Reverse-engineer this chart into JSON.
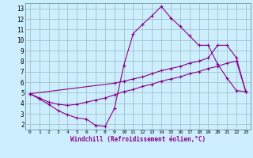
{
  "line1_x": [
    0,
    1,
    2,
    3,
    4,
    5,
    6,
    7,
    8,
    9,
    10,
    11,
    12,
    13,
    14,
    15,
    16,
    17,
    18,
    19,
    20,
    21,
    22,
    23
  ],
  "line1_y": [
    4.9,
    4.4,
    3.9,
    3.3,
    2.9,
    2.6,
    2.5,
    1.9,
    1.8,
    3.5,
    7.6,
    10.6,
    11.5,
    12.3,
    13.2,
    12.1,
    11.3,
    10.4,
    9.5,
    9.5,
    7.7,
    6.4,
    5.2,
    5.1
  ],
  "line2_x": [
    0,
    9,
    10,
    11,
    12,
    13,
    14,
    15,
    16,
    17,
    18,
    19,
    20,
    21,
    22,
    23
  ],
  "line2_y": [
    4.9,
    5.9,
    6.1,
    6.3,
    6.5,
    6.8,
    7.1,
    7.3,
    7.5,
    7.8,
    8.0,
    8.3,
    9.5,
    9.5,
    8.3,
    5.1
  ],
  "line3_x": [
    0,
    1,
    2,
    3,
    4,
    5,
    6,
    7,
    8,
    9,
    10,
    11,
    12,
    13,
    14,
    15,
    16,
    17,
    18,
    19,
    20,
    21,
    22,
    23
  ],
  "line3_y": [
    4.9,
    4.5,
    4.1,
    3.9,
    3.8,
    3.9,
    4.1,
    4.3,
    4.5,
    4.8,
    5.1,
    5.3,
    5.6,
    5.8,
    6.1,
    6.3,
    6.5,
    6.8,
    7.0,
    7.3,
    7.5,
    7.8,
    8.0,
    5.1
  ],
  "line_color": "#880088",
  "bg_color": "#cceeff",
  "grid_color": "#99bbbb",
  "xlabel": "Windchill (Refroidissement éolien,°C)",
  "xlim": [
    -0.5,
    23.5
  ],
  "ylim": [
    1.5,
    13.5
  ],
  "xticks": [
    0,
    1,
    2,
    3,
    4,
    5,
    6,
    7,
    8,
    9,
    10,
    11,
    12,
    13,
    14,
    15,
    16,
    17,
    18,
    19,
    20,
    21,
    22,
    23
  ],
  "yticks": [
    2,
    3,
    4,
    5,
    6,
    7,
    8,
    9,
    10,
    11,
    12,
    13
  ]
}
